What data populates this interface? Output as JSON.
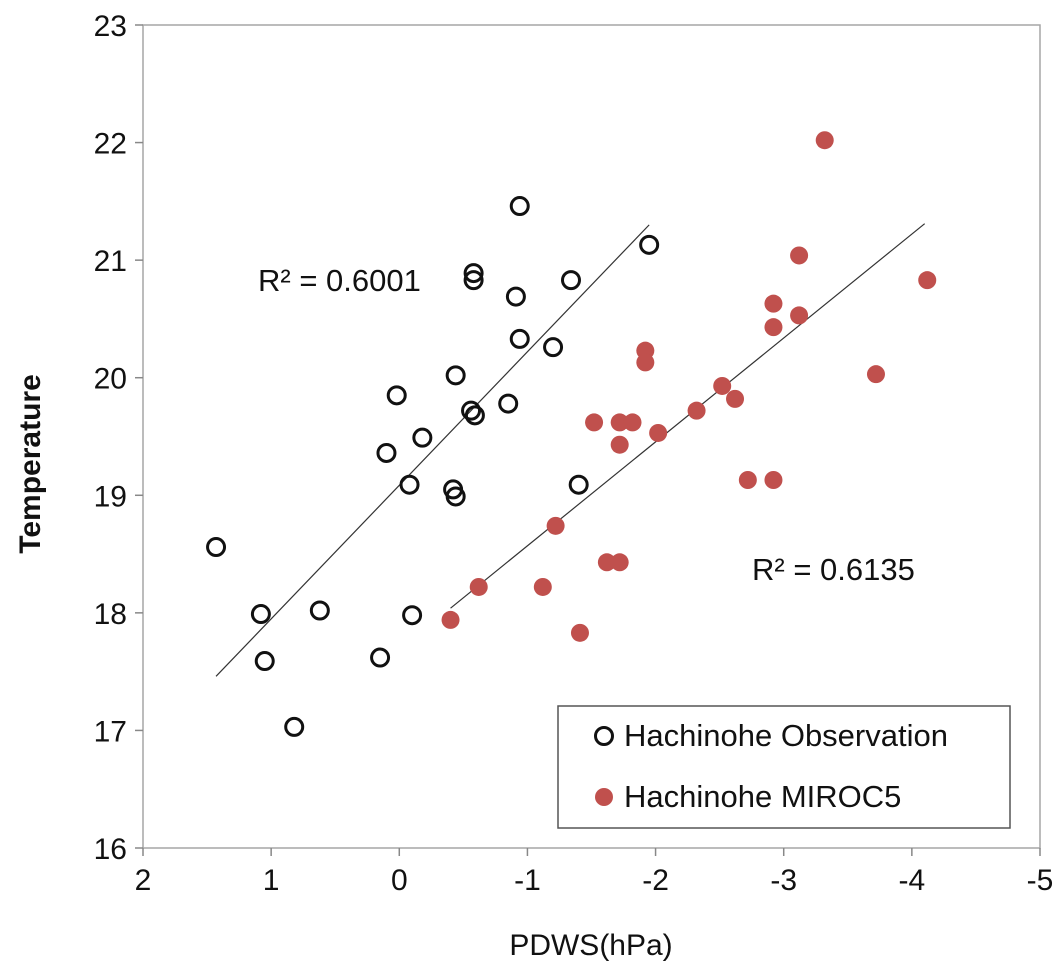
{
  "chart_data": {
    "type": "scatter",
    "xlabel": "PDWS(hPa)",
    "ylabel": "Temperature",
    "xlim": [
      2,
      -5
    ],
    "ylim": [
      16,
      23
    ],
    "x_ticks": [
      "2",
      "1",
      "0",
      "-1",
      "-2",
      "-3",
      "-4",
      "-5"
    ],
    "y_ticks": [
      "16",
      "17",
      "18",
      "19",
      "20",
      "21",
      "22",
      "23"
    ],
    "grid": false,
    "legend_position": "bottom-right",
    "series": [
      {
        "name": "Hachinohe Observation",
        "marker": "open-circle",
        "color": "#111111",
        "points": [
          [
            1.43,
            18.56
          ],
          [
            1.08,
            17.99
          ],
          [
            1.05,
            17.59
          ],
          [
            0.82,
            17.03
          ],
          [
            0.62,
            18.02
          ],
          [
            0.15,
            17.62
          ],
          [
            -0.1,
            17.98
          ],
          [
            0.1,
            19.36
          ],
          [
            0.02,
            19.85
          ],
          [
            -0.08,
            19.09
          ],
          [
            -0.18,
            19.49
          ],
          [
            -0.42,
            19.05
          ],
          [
            -0.44,
            18.99
          ],
          [
            -0.44,
            20.02
          ],
          [
            -0.56,
            19.72
          ],
          [
            -0.59,
            19.68
          ],
          [
            -0.58,
            20.89
          ],
          [
            -0.58,
            20.83
          ],
          [
            -0.85,
            19.78
          ],
          [
            -0.91,
            20.69
          ],
          [
            -0.94,
            21.46
          ],
          [
            -0.94,
            20.33
          ],
          [
            -1.2,
            20.26
          ],
          [
            -1.34,
            20.83
          ],
          [
            -1.4,
            19.09
          ],
          [
            -1.95,
            21.13
          ]
        ],
        "trendline": {
          "x": [
            1.43,
            -1.95
          ],
          "y": [
            17.46,
            21.3
          ]
        },
        "r_squared": "R² = 0.6001"
      },
      {
        "name": "Hachinohe MIROC5",
        "marker": "filled-circle",
        "color": "#c0504d",
        "points": [
          [
            -0.4,
            17.94
          ],
          [
            -0.62,
            18.22
          ],
          [
            -1.12,
            18.22
          ],
          [
            -1.22,
            18.74
          ],
          [
            -1.41,
            17.83
          ],
          [
            -1.62,
            18.43
          ],
          [
            -1.72,
            18.43
          ],
          [
            -1.52,
            19.62
          ],
          [
            -1.72,
            19.62
          ],
          [
            -1.82,
            19.62
          ],
          [
            -1.72,
            19.43
          ],
          [
            -1.92,
            20.23
          ],
          [
            -1.92,
            20.13
          ],
          [
            -2.02,
            19.53
          ],
          [
            -2.32,
            19.72
          ],
          [
            -2.52,
            19.93
          ],
          [
            -2.62,
            19.82
          ],
          [
            -2.72,
            19.13
          ],
          [
            -2.92,
            19.13
          ],
          [
            -2.92,
            20.63
          ],
          [
            -2.92,
            20.43
          ],
          [
            -3.12,
            21.04
          ],
          [
            -3.12,
            20.53
          ],
          [
            -3.32,
            22.02
          ],
          [
            -3.72,
            20.03
          ],
          [
            -4.12,
            20.83
          ]
        ],
        "trendline": {
          "x": [
            -0.4,
            -4.1
          ],
          "y": [
            18.04,
            21.31
          ]
        },
        "r_squared": "R² = 0.6135"
      }
    ]
  }
}
